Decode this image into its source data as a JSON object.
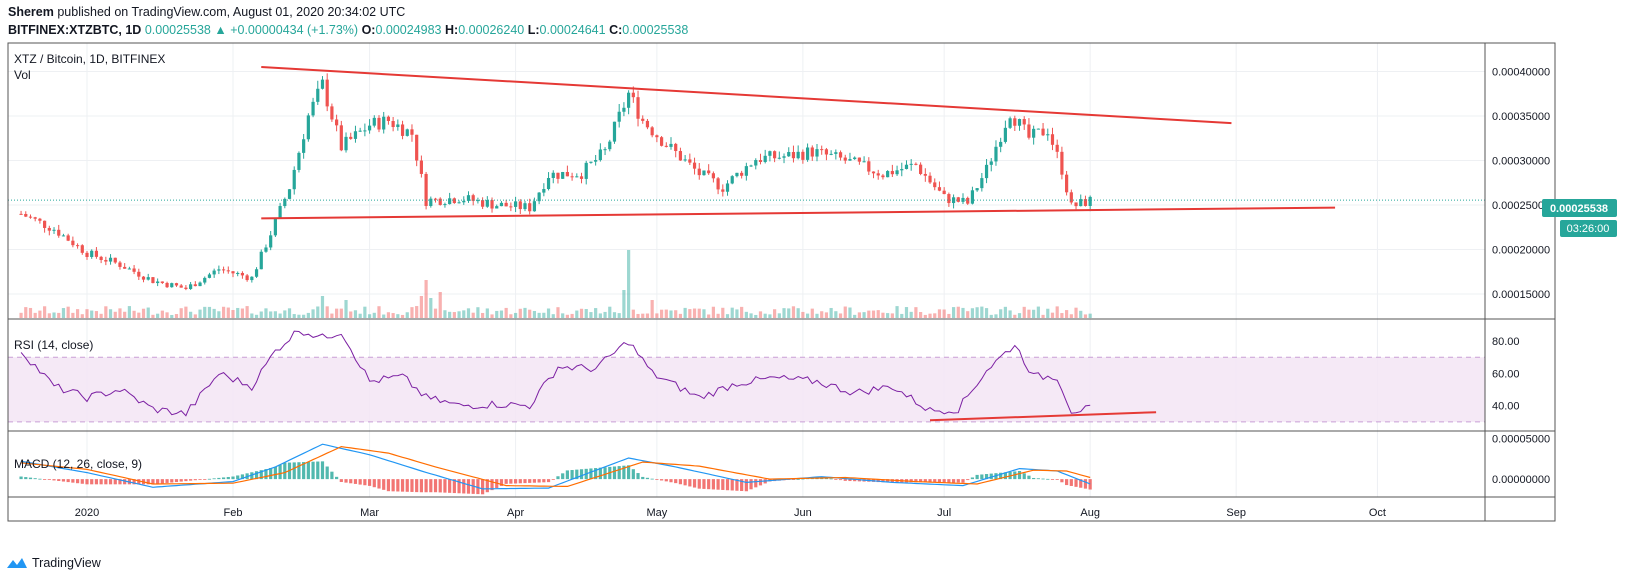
{
  "header": {
    "publisher": "Sherem",
    "published_text": "published on TradingView.com, August 01, 2020 20:34:02 UTC",
    "symbol": "BITFINEX:XTZBTC, 1D",
    "last": "0.00025538",
    "change": "▲ +0.00000434 (+1.73%)",
    "o_label": "O:",
    "o": "0.00024983",
    "h_label": "H:",
    "h": "0.00026240",
    "l_label": "L:",
    "l": "0.00024641",
    "c_label": "C:",
    "c": "0.00025538"
  },
  "main_pane": {
    "title": "XTZ / Bitcoin, 1D, BITFINEX",
    "vol_label": "Vol",
    "price_tag": "0.00025538",
    "countdown_tag": "03:26:00"
  },
  "rsi_pane": {
    "title": "RSI (14, close)"
  },
  "macd_pane": {
    "title": "MACD (12, 26, close, 9)"
  },
  "footer": {
    "brand": "TradingView"
  },
  "colors": {
    "up": "#26a69a",
    "down": "#ef5350",
    "trend": "#e53935",
    "rsi": "#7b1fa2",
    "macd": "#2196f3",
    "signal": "#ff6d00"
  },
  "chart_data": [
    {
      "type": "candlestick",
      "title": "XTZ / Bitcoin, 1D, BITFINEX",
      "x_ticks": [
        "2020",
        "Feb",
        "Mar",
        "Apr",
        "May",
        "Jun",
        "Jul",
        "Aug",
        "Sep",
        "Oct"
      ],
      "y_ticks": [
        "0.00015000",
        "0.00020000",
        "0.00025000",
        "0.00030000",
        "0.00035000",
        "0.00040000"
      ],
      "ylim": [
        0.000123,
        0.000432
      ],
      "close_path": [
        {
          "date": "2019-12-18",
          "value": 0.00024
        },
        {
          "date": "2019-12-25",
          "value": 0.000223
        },
        {
          "date": "2020-01-01",
          "value": 0.000196
        },
        {
          "date": "2020-01-08",
          "value": 0.000183
        },
        {
          "date": "2020-01-15",
          "value": 0.000165
        },
        {
          "date": "2020-01-22",
          "value": 0.000156
        },
        {
          "date": "2020-01-29",
          "value": 0.000178
        },
        {
          "date": "2020-02-05",
          "value": 0.000168
        },
        {
          "date": "2020-02-09",
          "value": 0.000218
        },
        {
          "date": "2020-02-13",
          "value": 0.00027
        },
        {
          "date": "2020-02-17",
          "value": 0.00035
        },
        {
          "date": "2020-02-20",
          "value": 0.000385
        },
        {
          "date": "2020-02-24",
          "value": 0.000315
        },
        {
          "date": "2020-03-01",
          "value": 0.00034
        },
        {
          "date": "2020-03-05",
          "value": 0.000345
        },
        {
          "date": "2020-03-10",
          "value": 0.00033
        },
        {
          "date": "2020-03-13",
          "value": 0.000255
        },
        {
          "date": "2020-03-20",
          "value": 0.000258
        },
        {
          "date": "2020-03-28",
          "value": 0.00025
        },
        {
          "date": "2020-04-04",
          "value": 0.000247
        },
        {
          "date": "2020-04-08",
          "value": 0.000284
        },
        {
          "date": "2020-04-15",
          "value": 0.000286
        },
        {
          "date": "2020-04-20",
          "value": 0.00031
        },
        {
          "date": "2020-04-25",
          "value": 0.000375
        },
        {
          "date": "2020-04-28",
          "value": 0.000345
        },
        {
          "date": "2020-05-03",
          "value": 0.000318
        },
        {
          "date": "2020-05-10",
          "value": 0.000285
        },
        {
          "date": "2020-05-15",
          "value": 0.00027
        },
        {
          "date": "2020-05-22",
          "value": 0.000302
        },
        {
          "date": "2020-05-29",
          "value": 0.000305
        },
        {
          "date": "2020-06-03",
          "value": 0.00031
        },
        {
          "date": "2020-06-10",
          "value": 0.0003
        },
        {
          "date": "2020-06-18",
          "value": 0.000285
        },
        {
          "date": "2020-06-25",
          "value": 0.000295
        },
        {
          "date": "2020-07-01",
          "value": 0.000258
        },
        {
          "date": "2020-07-06",
          "value": 0.000252
        },
        {
          "date": "2020-07-10",
          "value": 0.00029
        },
        {
          "date": "2020-07-15",
          "value": 0.000355
        },
        {
          "date": "2020-07-19",
          "value": 0.000325
        },
        {
          "date": "2020-07-23",
          "value": 0.000335
        },
        {
          "date": "2020-07-26",
          "value": 0.00029
        },
        {
          "date": "2020-07-28",
          "value": 0.000248
        },
        {
          "date": "2020-08-01",
          "value": 0.000255
        }
      ],
      "trendlines": [
        {
          "name": "upper",
          "from": {
            "date": "2020-02-07",
            "value": 0.000405
          },
          "to": {
            "date": "2020-08-31",
            "value": 0.000342
          }
        },
        {
          "name": "lower",
          "from": {
            "date": "2020-02-07",
            "value": 0.000235
          },
          "to": {
            "date": "2020-09-22",
            "value": 0.000247
          }
        }
      ],
      "last_price": 0.00025538
    },
    {
      "type": "line",
      "title": "RSI (14, close)",
      "y_ticks": [
        "40.00",
        "60.00",
        "80.00"
      ],
      "ylim": [
        25,
        93
      ],
      "band": [
        30,
        70
      ],
      "values": [
        {
          "date": "2019-12-18",
          "value": 74
        },
        {
          "date": "2019-12-25",
          "value": 52
        },
        {
          "date": "2020-01-01",
          "value": 45
        },
        {
          "date": "2020-01-08",
          "value": 50
        },
        {
          "date": "2020-01-15",
          "value": 38
        },
        {
          "date": "2020-01-22",
          "value": 35
        },
        {
          "date": "2020-01-29",
          "value": 60
        },
        {
          "date": "2020-02-05",
          "value": 52
        },
        {
          "date": "2020-02-10",
          "value": 74
        },
        {
          "date": "2020-02-15",
          "value": 87
        },
        {
          "date": "2020-02-20",
          "value": 82
        },
        {
          "date": "2020-02-24",
          "value": 86
        },
        {
          "date": "2020-03-01",
          "value": 55
        },
        {
          "date": "2020-03-08",
          "value": 58
        },
        {
          "date": "2020-03-13",
          "value": 45
        },
        {
          "date": "2020-03-20",
          "value": 40
        },
        {
          "date": "2020-03-28",
          "value": 41
        },
        {
          "date": "2020-04-04",
          "value": 40
        },
        {
          "date": "2020-04-10",
          "value": 64
        },
        {
          "date": "2020-04-18",
          "value": 63
        },
        {
          "date": "2020-04-25",
          "value": 80
        },
        {
          "date": "2020-04-30",
          "value": 60
        },
        {
          "date": "2020-05-10",
          "value": 45
        },
        {
          "date": "2020-05-18",
          "value": 54
        },
        {
          "date": "2020-05-26",
          "value": 57
        },
        {
          "date": "2020-06-04",
          "value": 55
        },
        {
          "date": "2020-06-12",
          "value": 48
        },
        {
          "date": "2020-06-20",
          "value": 52
        },
        {
          "date": "2020-06-28",
          "value": 37
        },
        {
          "date": "2020-07-04",
          "value": 38
        },
        {
          "date": "2020-07-10",
          "value": 62
        },
        {
          "date": "2020-07-16",
          "value": 78
        },
        {
          "date": "2020-07-20",
          "value": 58
        },
        {
          "date": "2020-07-25",
          "value": 58
        },
        {
          "date": "2020-07-28",
          "value": 37
        },
        {
          "date": "2020-08-01",
          "value": 38
        }
      ],
      "trendline": {
        "from": {
          "date": "2020-06-28",
          "value": 31
        },
        "to": {
          "date": "2020-08-15",
          "value": 36
        }
      }
    },
    {
      "type": "line",
      "title": "MACD (12, 26, close, 9)",
      "y_ticks": [
        "0.00000000",
        "0.00005000"
      ],
      "ylim": [
        -2.2e-05,
        5.8e-05
      ],
      "series": [
        {
          "name": "macd",
          "values": [
            {
              "date": "2019-12-18",
              "value": 2.2e-05
            },
            {
              "date": "2020-01-01",
              "value": 8e-06
            },
            {
              "date": "2020-01-15",
              "value": -1e-05
            },
            {
              "date": "2020-02-01",
              "value": -3e-06
            },
            {
              "date": "2020-02-10",
              "value": 1.5e-05
            },
            {
              "date": "2020-02-20",
              "value": 4.3e-05
            },
            {
              "date": "2020-03-01",
              "value": 3e-05
            },
            {
              "date": "2020-03-12",
              "value": 1e-05
            },
            {
              "date": "2020-03-25",
              "value": -1.2e-05
            },
            {
              "date": "2020-04-08",
              "value": -1.1e-05
            },
            {
              "date": "2020-04-25",
              "value": 2.6e-05
            },
            {
              "date": "2020-05-05",
              "value": 1.5e-05
            },
            {
              "date": "2020-05-20",
              "value": -4e-06
            },
            {
              "date": "2020-06-05",
              "value": 3e-06
            },
            {
              "date": "2020-06-20",
              "value": -4e-06
            },
            {
              "date": "2020-07-05",
              "value": -8e-06
            },
            {
              "date": "2020-07-17",
              "value": 1.3e-05
            },
            {
              "date": "2020-07-25",
              "value": 1e-05
            },
            {
              "date": "2020-08-01",
              "value": -6e-06
            }
          ]
        },
        {
          "name": "signal",
          "values": [
            {
              "date": "2019-12-18",
              "value": 2e-05
            },
            {
              "date": "2020-01-01",
              "value": 1.2e-05
            },
            {
              "date": "2020-01-15",
              "value": -6e-06
            },
            {
              "date": "2020-02-01",
              "value": -5e-06
            },
            {
              "date": "2020-02-12",
              "value": 8e-06
            },
            {
              "date": "2020-02-24",
              "value": 4e-05
            },
            {
              "date": "2020-03-05",
              "value": 3.2e-05
            },
            {
              "date": "2020-03-15",
              "value": 1.5e-05
            },
            {
              "date": "2020-03-30",
              "value": -8e-06
            },
            {
              "date": "2020-04-12",
              "value": -9e-06
            },
            {
              "date": "2020-04-28",
              "value": 2.1e-05
            },
            {
              "date": "2020-05-10",
              "value": 1.6e-05
            },
            {
              "date": "2020-05-25",
              "value": 0.0
            },
            {
              "date": "2020-06-10",
              "value": 2e-06
            },
            {
              "date": "2020-06-25",
              "value": -3e-06
            },
            {
              "date": "2020-07-08",
              "value": -6e-06
            },
            {
              "date": "2020-07-20",
              "value": 1.1e-05
            },
            {
              "date": "2020-07-27",
              "value": 1e-05
            },
            {
              "date": "2020-08-01",
              "value": 2e-06
            }
          ]
        }
      ]
    }
  ]
}
